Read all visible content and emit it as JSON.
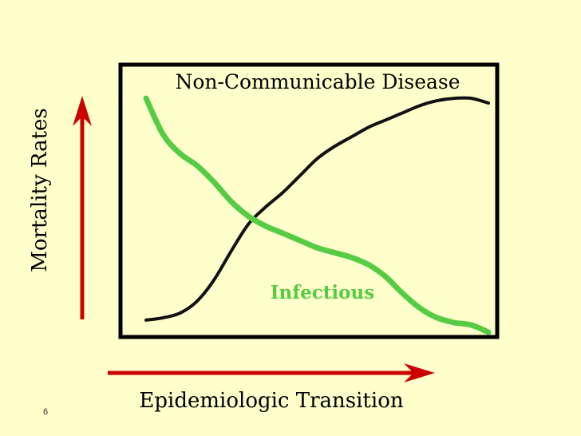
{
  "slide": {
    "page_number": "6"
  },
  "colors": {
    "background": "#FFFFCC",
    "frame": "#000000",
    "arrow": "#CC0000",
    "infectious": "#55CC44",
    "non_communicable": "#111111"
  },
  "chart_data": {
    "type": "line",
    "title": "",
    "xlabel": "Epidemiologic Transition",
    "ylabel": "Mortality Rates",
    "xlim": [
      0,
      100
    ],
    "ylim": [
      0,
      100
    ],
    "grid": false,
    "series": [
      {
        "name": "Non-Communicable Disease",
        "color": "#111111",
        "x": [
          0,
          5,
          10,
          15,
          20,
          25,
          30,
          35,
          40,
          45,
          50,
          55,
          60,
          65,
          70,
          75,
          80,
          85,
          90,
          95,
          100
        ],
        "y": [
          3,
          4,
          6,
          11,
          20,
          32,
          43,
          50,
          56,
          63,
          70,
          75,
          79,
          83,
          86,
          89,
          92,
          94,
          95,
          95,
          93
        ]
      },
      {
        "name": "Infectious",
        "color": "#55CC44",
        "x": [
          0,
          5,
          10,
          15,
          20,
          25,
          30,
          35,
          40,
          45,
          50,
          55,
          60,
          65,
          70,
          75,
          80,
          85,
          90,
          95,
          100
        ],
        "y": [
          95,
          80,
          72,
          67,
          60,
          52,
          46,
          42,
          39,
          36,
          33,
          31,
          29,
          26,
          21,
          14,
          8,
          4,
          2,
          1,
          -2
        ]
      }
    ]
  }
}
